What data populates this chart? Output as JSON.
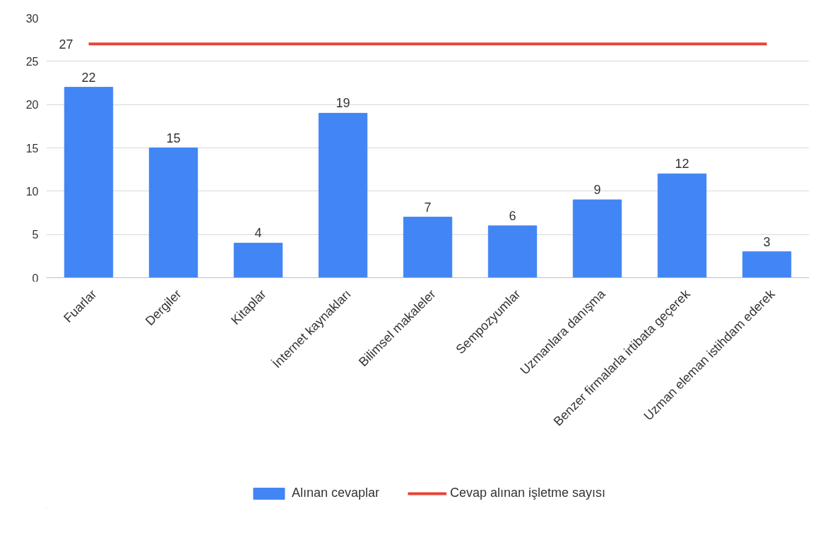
{
  "chart_data": {
    "type": "bar",
    "categories": [
      "Fuarlar",
      "Dergiler",
      "Kitaplar",
      "İnternet kaynakları",
      "Bilimsel makaleler",
      "Sempozyumlar",
      "Uzmanlara danışma",
      "Benzer firmalarla irtibata geçerek",
      "Uzman eleman istihdam ederek"
    ],
    "series": [
      {
        "name": "Alınan cevaplar",
        "color": "#4285f4",
        "values": [
          22,
          15,
          4,
          19,
          7,
          6,
          9,
          12,
          3
        ]
      },
      {
        "name": "Cevap alınan işletme sayısı",
        "type": "line",
        "color": "#ea4335",
        "values": [
          27,
          27,
          27,
          27,
          27,
          27,
          27,
          27,
          27
        ],
        "value_labels": [
          "27",
          null,
          null,
          null,
          null,
          null,
          null,
          null,
          null
        ]
      }
    ],
    "data_labels": true,
    "ylim": [
      0,
      30
    ],
    "yticks": [
      0,
      5,
      10,
      15,
      20,
      25,
      30
    ],
    "grid": "y",
    "legend": "bottom",
    "marker": "none",
    "line_style": "solid"
  }
}
